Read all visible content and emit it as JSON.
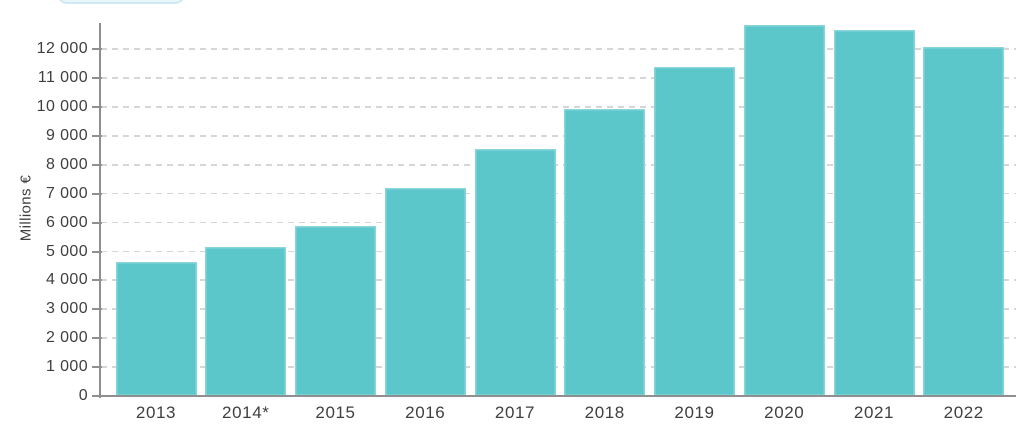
{
  "chart_data": {
    "type": "bar",
    "title": "",
    "xlabel": "",
    "ylabel": "Millions €",
    "categories": [
      "2013",
      "2014*",
      "2015",
      "2016",
      "2017",
      "2018",
      "2019",
      "2020",
      "2021",
      "2022"
    ],
    "values": [
      4650,
      5170,
      5880,
      7200,
      8550,
      9930,
      11370,
      12840,
      12660,
      12090
    ],
    "ylim": [
      0,
      13000
    ],
    "y_tick_step": 1000,
    "y_tick_labels": [
      "0",
      "1 000",
      "2 000",
      "3 000",
      "4 000",
      "5 000",
      "6 000",
      "7 000",
      "8 000",
      "9 000",
      "10 000",
      "11 000",
      "12 000"
    ],
    "grid": "horizontal-dashed",
    "legend": "none",
    "bar_color": "#5bc7cb",
    "axis_color": "#8f8f8f",
    "text_color": "#3f3f3f",
    "gridline_color": "#d6d6d6"
  },
  "partial_top_element": {
    "label": "",
    "fill_color": "#eaf6fa",
    "border_color": "#cfe9f2"
  }
}
